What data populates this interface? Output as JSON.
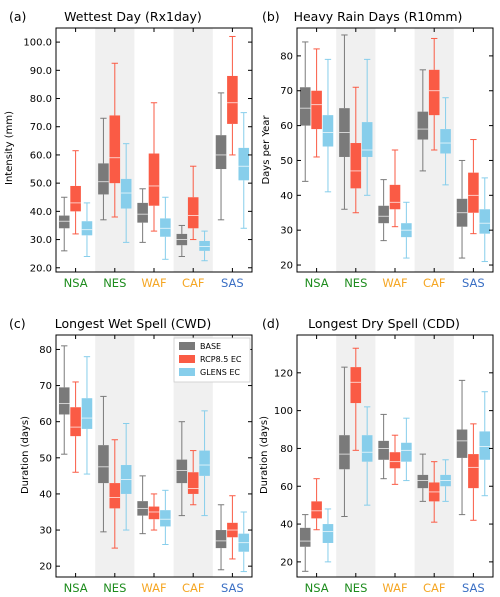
{
  "colors": {
    "BASE": "#7a7a7a",
    "RCP8.5 EC": "#fa5b45",
    "GLENS EC": "#87ceeb",
    "shade": "#f0f0f0",
    "median": "#ffffff"
  },
  "category_colors": {
    "NSA": "#1e8c1e",
    "NES": "#1e8c1e",
    "WAF": "#f5a623",
    "CAF": "#f5a623",
    "SAS": "#3a6fc4"
  },
  "chart_data": [
    {
      "type": "box",
      "panel_label": "(a)",
      "title": "Wettest Day (Rx1day)",
      "ylabel": "Intensity (mm)",
      "ylim": [
        18.5,
        105
      ],
      "yticks": [
        "20.0",
        "30.0",
        "40.0",
        "50.0",
        "60.0",
        "70.0",
        "80.0",
        "90.0",
        "100.0"
      ],
      "ytick_values": [
        20,
        30,
        40,
        50,
        60,
        70,
        80,
        90,
        100
      ],
      "categories": [
        "NSA",
        "NES",
        "WAF",
        "CAF",
        "SAS"
      ],
      "legend": null,
      "series": [
        {
          "name": "BASE",
          "boxes": [
            [
              26,
              34,
              36.5,
              38.5,
              45
            ],
            [
              37,
              46,
              50.5,
              57,
              73
            ],
            [
              29,
              36,
              39,
              43,
              48
            ],
            [
              24,
              28,
              30,
              32,
              35
            ],
            [
              37,
              55,
              60,
              67,
              82
            ]
          ]
        },
        {
          "name": "RCP8.5 EC",
          "boxes": [
            [
              32,
              40,
              43,
              49,
              61.5
            ],
            [
              38,
              50,
              59,
              74,
              92.5
            ],
            [
              33,
              42,
              49,
              60.5,
              78.5
            ],
            [
              30,
              34,
              38.5,
              45,
              56
            ],
            [
              60,
              71,
              78.5,
              88,
              102
            ]
          ]
        },
        {
          "name": "GLENS EC",
          "boxes": [
            [
              24,
              31.5,
              33.5,
              36.5,
              43
            ],
            [
              29,
              41,
              46.5,
              51.5,
              64
            ],
            [
              23,
              31,
              34,
              37.5,
              45
            ],
            [
              22.5,
              26,
              27.5,
              29.5,
              33
            ],
            [
              34,
              51,
              56,
              62.5,
              75
            ]
          ]
        }
      ]
    },
    {
      "type": "box",
      "panel_label": "(b)",
      "title": "Heavy Rain Days (R10mm)",
      "ylabel": "Days per Year",
      "ylim": [
        18,
        88
      ],
      "yticks": [
        "20",
        "30",
        "40",
        "50",
        "60",
        "70",
        "80"
      ],
      "ytick_values": [
        20,
        30,
        40,
        50,
        60,
        70,
        80
      ],
      "categories": [
        "NSA",
        "NES",
        "WAF",
        "CAF",
        "SAS"
      ],
      "legend": null,
      "series": [
        {
          "name": "BASE",
          "boxes": [
            [
              44,
              60,
              65,
              71,
              84
            ],
            [
              36,
              51,
              58,
              65,
              86
            ],
            [
              27,
              32,
              34,
              37,
              44.5
            ],
            [
              47,
              56,
              59,
              64,
              76
            ],
            [
              22,
              31,
              35,
              39,
              50
            ]
          ]
        },
        {
          "name": "RCP8.5 EC",
          "boxes": [
            [
              51,
              59,
              66,
              70,
              82
            ],
            [
              35,
              42,
              47,
              55,
              71
            ],
            [
              31,
              36,
              38,
              43,
              53
            ],
            [
              53,
              63,
              70,
              76,
              85
            ],
            [
              29,
              35,
              40,
              46.5,
              56
            ]
          ]
        },
        {
          "name": "GLENS EC",
          "boxes": [
            [
              41,
              54,
              58,
              63,
              79
            ],
            [
              40,
              51,
              53,
              61,
              79
            ],
            [
              22,
              28,
              30,
              32,
              38
            ],
            [
              43,
              52,
              55,
              59,
              68
            ],
            [
              21,
              29,
              32,
              36,
              45
            ]
          ]
        }
      ]
    },
    {
      "type": "box",
      "panel_label": "(c)",
      "title": "Longest Wet Spell (CWD)",
      "ylabel": "Duration (days)",
      "ylim": [
        17,
        84
      ],
      "yticks": [
        "20",
        "30",
        "40",
        "50",
        "60",
        "70",
        "80"
      ],
      "ytick_values": [
        20,
        30,
        40,
        50,
        60,
        70,
        80
      ],
      "categories": [
        "NSA",
        "NES",
        "WAF",
        "CAF",
        "SAS"
      ],
      "legend": {
        "position": "top-right",
        "entries": [
          "BASE",
          "RCP8.5 EC",
          "GLENS EC"
        ]
      },
      "series": [
        {
          "name": "BASE",
          "boxes": [
            [
              51,
              62,
              65,
              69.5,
              81
            ],
            [
              29.5,
              43,
              47.5,
              53.5,
              67
            ],
            [
              29,
              34,
              36,
              38,
              45
            ],
            [
              34,
              43,
              46.5,
              49.5,
              60
            ],
            [
              19,
              25,
              27,
              30,
              37
            ]
          ]
        },
        {
          "name": "RCP8.5 EC",
          "boxes": [
            [
              46,
              56,
              58.5,
              64,
              71
            ],
            [
              25,
              36,
              39,
              43,
              55
            ],
            [
              30,
              33,
              35,
              36.5,
              40
            ],
            [
              37,
              40,
              41.5,
              46,
              52
            ],
            [
              22,
              28,
              30,
              32,
              39.5
            ]
          ]
        },
        {
          "name": "GLENS EC",
          "boxes": [
            [
              45.5,
              58,
              61,
              66.5,
              78
            ],
            [
              30,
              40,
              44,
              48,
              59.5
            ],
            [
              26,
              31,
              33,
              35.5,
              41
            ],
            [
              34,
              45,
              48,
              52,
              63
            ],
            [
              18.5,
              24,
              26.5,
              29,
              35
            ]
          ]
        }
      ]
    },
    {
      "type": "box",
      "panel_label": "(d)",
      "title": "Longest Dry Spell (CDD)",
      "ylabel": "Duration (days)",
      "ylim": [
        12,
        140
      ],
      "yticks": [
        "20",
        "40",
        "60",
        "80",
        "100",
        "120"
      ],
      "ytick_values": [
        20,
        40,
        60,
        80,
        100,
        120
      ],
      "categories": [
        "NSA",
        "NES",
        "WAF",
        "CAF",
        "SAS"
      ],
      "legend": null,
      "series": [
        {
          "name": "BASE",
          "boxes": [
            [
              15,
              28,
              31,
              38,
              45
            ],
            [
              44,
              69,
              77,
              87,
              123
            ],
            [
              64,
              74,
              80,
              84,
              98
            ],
            [
              52,
              59,
              63,
              66,
              77
            ],
            [
              45,
              75,
              84,
              90,
              116
            ]
          ]
        },
        {
          "name": "RCP8.5 EC",
          "boxes": [
            [
              37,
              43,
              47,
              52,
              64
            ],
            [
              79,
              104,
              115,
              123,
              133
            ],
            [
              61,
              69.5,
              73,
              78,
              87
            ],
            [
              41,
              52,
              57,
              62,
              73
            ],
            [
              42,
              59,
              70,
              77,
              93
            ]
          ]
        },
        {
          "name": "GLENS EC",
          "boxes": [
            [
              20,
              30,
              36,
              40,
              48
            ],
            [
              50,
              73,
              78,
              87,
              102
            ],
            [
              63,
              73,
              79,
              83,
              96
            ],
            [
              52,
              60,
              63,
              66,
              74
            ],
            [
              55,
              74,
              81,
              89,
              110
            ]
          ]
        }
      ]
    }
  ]
}
